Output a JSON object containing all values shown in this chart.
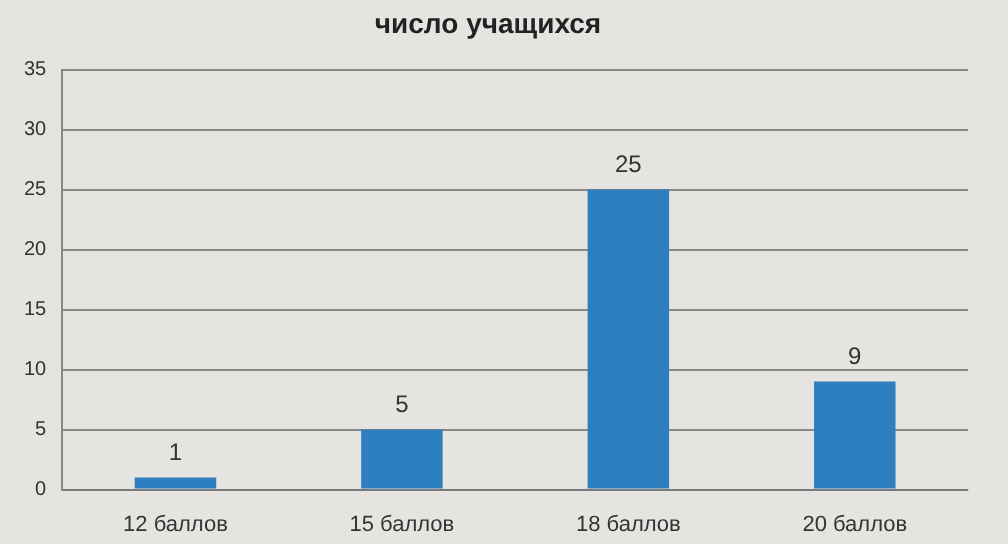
{
  "chart_data": {
    "type": "bar",
    "title": "число учащихся",
    "categories": [
      "12 баллов",
      "15 баллов",
      "18 баллов",
      "20 баллов"
    ],
    "values": [
      1,
      5,
      25,
      9
    ],
    "color": "#2e7fbf",
    "ylim": [
      0,
      35
    ],
    "yticks": [
      0,
      5,
      10,
      15,
      20,
      25,
      30,
      35
    ],
    "grid": "y",
    "data_labels": true
  }
}
